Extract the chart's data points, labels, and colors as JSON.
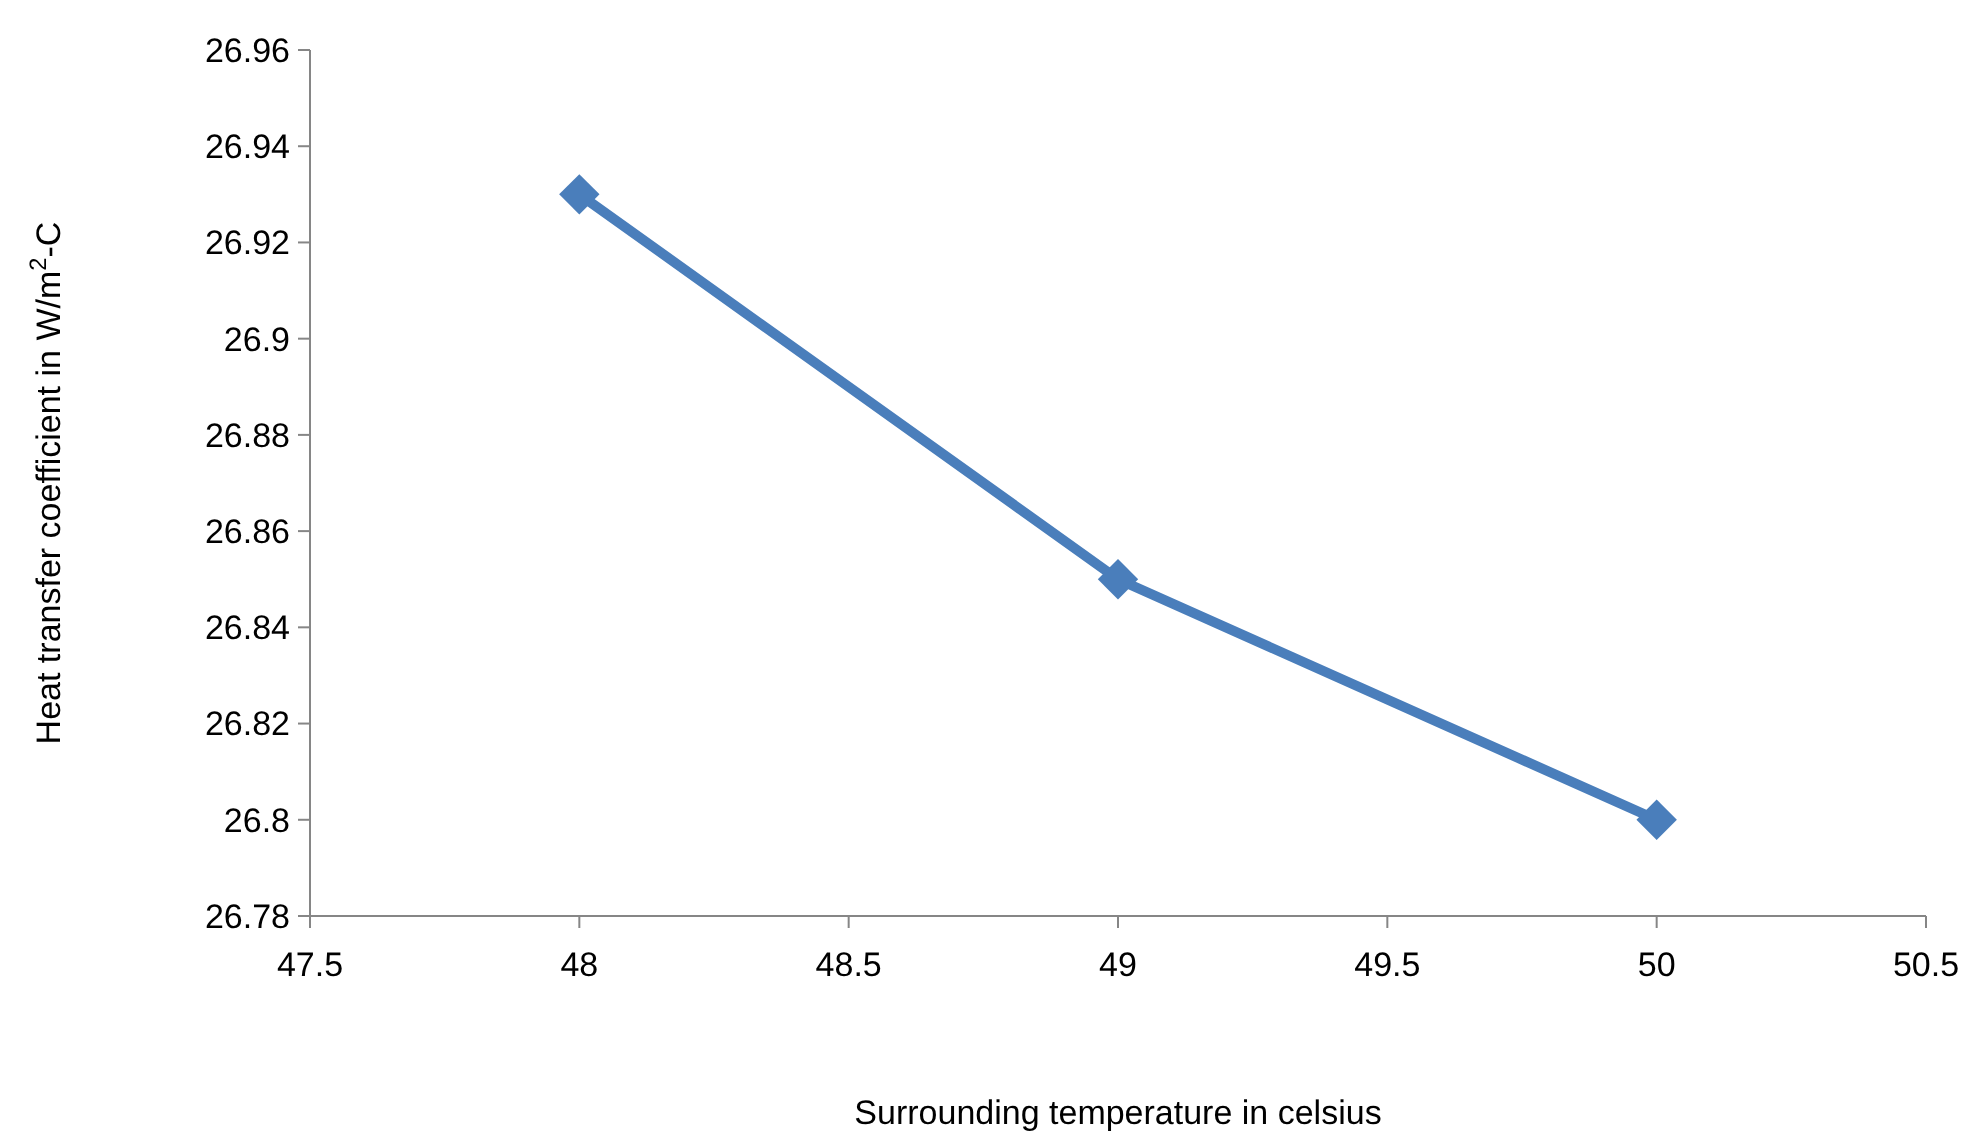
{
  "chart_data": {
    "type": "line",
    "xlabel": "Surrounding temperature in celsius",
    "ylabel": "Heat transfer coefficient in W/m$^{2}$-C",
    "x": [
      48,
      49,
      50
    ],
    "series": [
      {
        "color": "#4a7ebb",
        "values": [
          26.93,
          26.85,
          26.8
        ]
      }
    ],
    "xlim": [
      47.5,
      50.5
    ],
    "xticks": [
      47.5,
      48,
      48.5,
      49,
      49.5,
      50,
      50.5
    ],
    "ylim": [
      26.78,
      26.96
    ],
    "yticks": [
      26.78,
      26.8,
      26.82,
      26.84,
      26.86,
      26.88,
      26.9,
      26.92,
      26.94,
      26.96
    ],
    "marker": "diamond",
    "line_style": "solid",
    "grid": false
  }
}
